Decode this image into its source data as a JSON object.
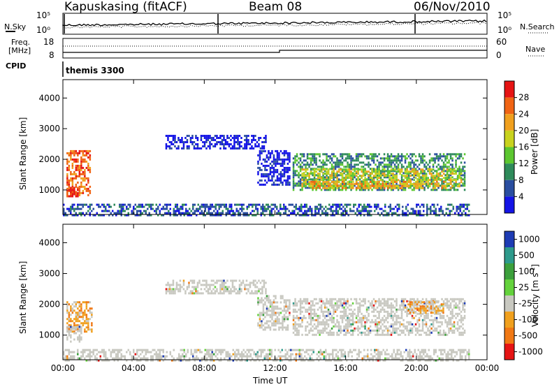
{
  "header": {
    "station": "Kapuskasing (fitACF)",
    "beam": "Beam 08",
    "date": "06/Nov/2010"
  },
  "side_labels": {
    "nsky": "N.Sky",
    "nsearch": "N.Search",
    "freq_line1": "Freq.",
    "freq_line2": "[MHz]",
    "nave": "Nave",
    "cpid": "CPID",
    "cpid_value": "themis 3300"
  },
  "small_ticks": {
    "noise_left": [
      "10^5",
      "10^0"
    ],
    "noise_right": [
      "10^5",
      "10^0"
    ],
    "freq_left": [
      "18",
      "8"
    ],
    "freq_right": [
      "60",
      "0"
    ]
  },
  "chart_data": [
    {
      "type": "heatmap",
      "title": "",
      "xlabel": "Time UT",
      "ylabel": "Slant Range [km]",
      "x_ticks": [
        "00:00",
        "04:00",
        "08:00",
        "12:00",
        "16:00",
        "20:00",
        "00:00"
      ],
      "y_ticks": [
        1000,
        2000,
        3000,
        4000
      ],
      "ylim": [
        200,
        4600
      ],
      "xlim_hours": [
        0,
        24
      ],
      "colorbar": {
        "label": "Power [dB]",
        "ticks": [
          "4",
          "8",
          "12",
          "16",
          "20",
          "24",
          "28"
        ],
        "colors": [
          "#1414e6",
          "#2a4ea0",
          "#2e8a5a",
          "#5cc630",
          "#c8d21e",
          "#f0a01e",
          "#f06414",
          "#e61414"
        ]
      },
      "regions": [
        {
          "t0": 0.2,
          "t1": 1.5,
          "r0": 800,
          "r1": 2300,
          "level": 6
        },
        {
          "t0": 0.2,
          "t1": 0.8,
          "r0": 800,
          "r1": 1100,
          "level": 7
        },
        {
          "t0": 5.8,
          "t1": 11.5,
          "r0": 2350,
          "r1": 2800,
          "level": 0
        },
        {
          "t0": 11.0,
          "t1": 12.8,
          "r0": 1200,
          "r1": 2300,
          "level": 0
        },
        {
          "t0": 13.0,
          "t1": 22.7,
          "r0": 1000,
          "r1": 2200,
          "level": 2
        },
        {
          "t0": 13.5,
          "t1": 22.5,
          "r0": 1100,
          "r1": 1700,
          "level": 4
        },
        {
          "t0": 14.0,
          "t1": 22.0,
          "r0": 1050,
          "r1": 1300,
          "level": 5
        },
        {
          "t0": 0.0,
          "t1": 23.0,
          "r0": 200,
          "r1": 550,
          "level": 1
        }
      ]
    },
    {
      "type": "heatmap",
      "title": "",
      "xlabel": "Time UT",
      "ylabel": "Slant Range [km]",
      "x_ticks": [
        "00:00",
        "04:00",
        "08:00",
        "12:00",
        "16:00",
        "20:00",
        "00:00"
      ],
      "y_ticks": [
        1000,
        2000,
        3000,
        4000
      ],
      "ylim": [
        200,
        4600
      ],
      "xlim_hours": [
        0,
        24
      ],
      "colorbar": {
        "label": "Velocity [m s^-1]",
        "ticks": [
          "1000",
          "500",
          "100",
          "25",
          "-25",
          "-100",
          "-500",
          "-1000"
        ],
        "colors": [
          "#1e3cb4",
          "#2e9a8c",
          "#3ca03c",
          "#64d23c",
          "#c8c8c0",
          "#f0a01e",
          "#f07814",
          "#e61414"
        ]
      },
      "regions": [
        {
          "t0": 0.2,
          "t1": 1.6,
          "r0": 1100,
          "r1": 2100,
          "level": 5
        },
        {
          "t0": 0.2,
          "t1": 1.0,
          "r0": 800,
          "r1": 1300,
          "level": 4
        },
        {
          "t0": 5.8,
          "t1": 11.5,
          "r0": 2350,
          "r1": 2800,
          "level": 4
        },
        {
          "t0": 11.0,
          "t1": 12.8,
          "r0": 1200,
          "r1": 2300,
          "level": 4
        },
        {
          "t0": 13.0,
          "t1": 22.7,
          "r0": 1000,
          "r1": 2200,
          "level": 4
        },
        {
          "t0": 19.5,
          "t1": 21.5,
          "r0": 1700,
          "r1": 2100,
          "level": 5
        },
        {
          "t0": 0.0,
          "t1": 23.0,
          "r0": 200,
          "r1": 550,
          "level": 4
        }
      ]
    }
  ]
}
